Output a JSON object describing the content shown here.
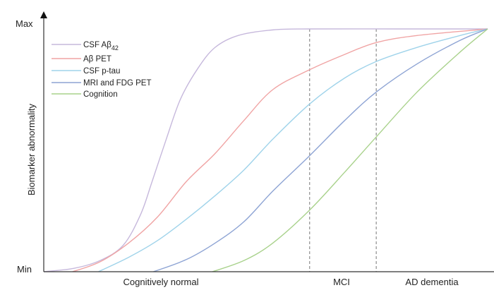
{
  "chart_data": {
    "type": "line",
    "title": "",
    "ylabel": "Biomarker abnormality",
    "y_tick_labels": {
      "min": "Min",
      "max": "Max"
    },
    "ylim": [
      0,
      1
    ],
    "xlim": [
      0,
      1
    ],
    "grid": false,
    "legend_position": "top-left",
    "stages": [
      {
        "label": "Cognitively normal",
        "range": [
          0,
          0.599
        ]
      },
      {
        "label": "MCI",
        "range": [
          0.599,
          0.749
        ]
      },
      {
        "label": "AD dementia",
        "range": [
          0.749,
          1
        ]
      }
    ],
    "stage_boundaries": [
      0.599,
      0.749
    ],
    "series": [
      {
        "name": "CSF Aβ",
        "name_subscript": "42",
        "color": "#c6b8dc",
        "points": [
          [
            0,
            0
          ],
          [
            0.068,
            0.014
          ],
          [
            0.127,
            0.046
          ],
          [
            0.179,
            0.109
          ],
          [
            0.218,
            0.235
          ],
          [
            0.244,
            0.371
          ],
          [
            0.276,
            0.546
          ],
          [
            0.308,
            0.711
          ],
          [
            0.347,
            0.837
          ],
          [
            0.386,
            0.924
          ],
          [
            0.438,
            0.973
          ],
          [
            0.516,
            0.996
          ],
          [
            0.599,
            1
          ],
          [
            0.8,
            1
          ],
          [
            1,
            1
          ]
        ]
      },
      {
        "name": "Aβ PET",
        "color": "#f0a4a4",
        "points": [
          [
            0.065,
            0
          ],
          [
            0.127,
            0.041
          ],
          [
            0.191,
            0.118
          ],
          [
            0.256,
            0.225
          ],
          [
            0.321,
            0.371
          ],
          [
            0.386,
            0.487
          ],
          [
            0.451,
            0.623
          ],
          [
            0.516,
            0.75
          ],
          [
            0.599,
            0.832
          ],
          [
            0.678,
            0.895
          ],
          [
            0.749,
            0.944
          ],
          [
            0.841,
            0.973
          ],
          [
            1,
            1
          ]
        ]
      },
      {
        "name": "CSF p-tau",
        "color": "#9fd3ea",
        "points": [
          [
            0.123,
            0
          ],
          [
            0.192,
            0.06
          ],
          [
            0.256,
            0.128
          ],
          [
            0.321,
            0.216
          ],
          [
            0.386,
            0.313
          ],
          [
            0.451,
            0.419
          ],
          [
            0.516,
            0.546
          ],
          [
            0.599,
            0.691
          ],
          [
            0.678,
            0.798
          ],
          [
            0.749,
            0.866
          ],
          [
            0.841,
            0.924
          ],
          [
            0.938,
            0.973
          ],
          [
            1,
            1
          ]
        ]
      },
      {
        "name": "MRI and FDG PET",
        "color": "#8ea4d4",
        "points": [
          [
            0.247,
            0
          ],
          [
            0.321,
            0.05
          ],
          [
            0.386,
            0.118
          ],
          [
            0.451,
            0.206
          ],
          [
            0.516,
            0.332
          ],
          [
            0.599,
            0.478
          ],
          [
            0.678,
            0.623
          ],
          [
            0.749,
            0.74
          ],
          [
            0.841,
            0.856
          ],
          [
            0.938,
            0.953
          ],
          [
            1,
            1
          ]
        ]
      },
      {
        "name": "Cognition",
        "color": "#a9d28c",
        "points": [
          [
            0.38,
            0
          ],
          [
            0.451,
            0.046
          ],
          [
            0.516,
            0.118
          ],
          [
            0.599,
            0.254
          ],
          [
            0.678,
            0.41
          ],
          [
            0.749,
            0.555
          ],
          [
            0.841,
            0.74
          ],
          [
            0.938,
            0.905
          ],
          [
            1,
            1
          ]
        ]
      }
    ]
  }
}
